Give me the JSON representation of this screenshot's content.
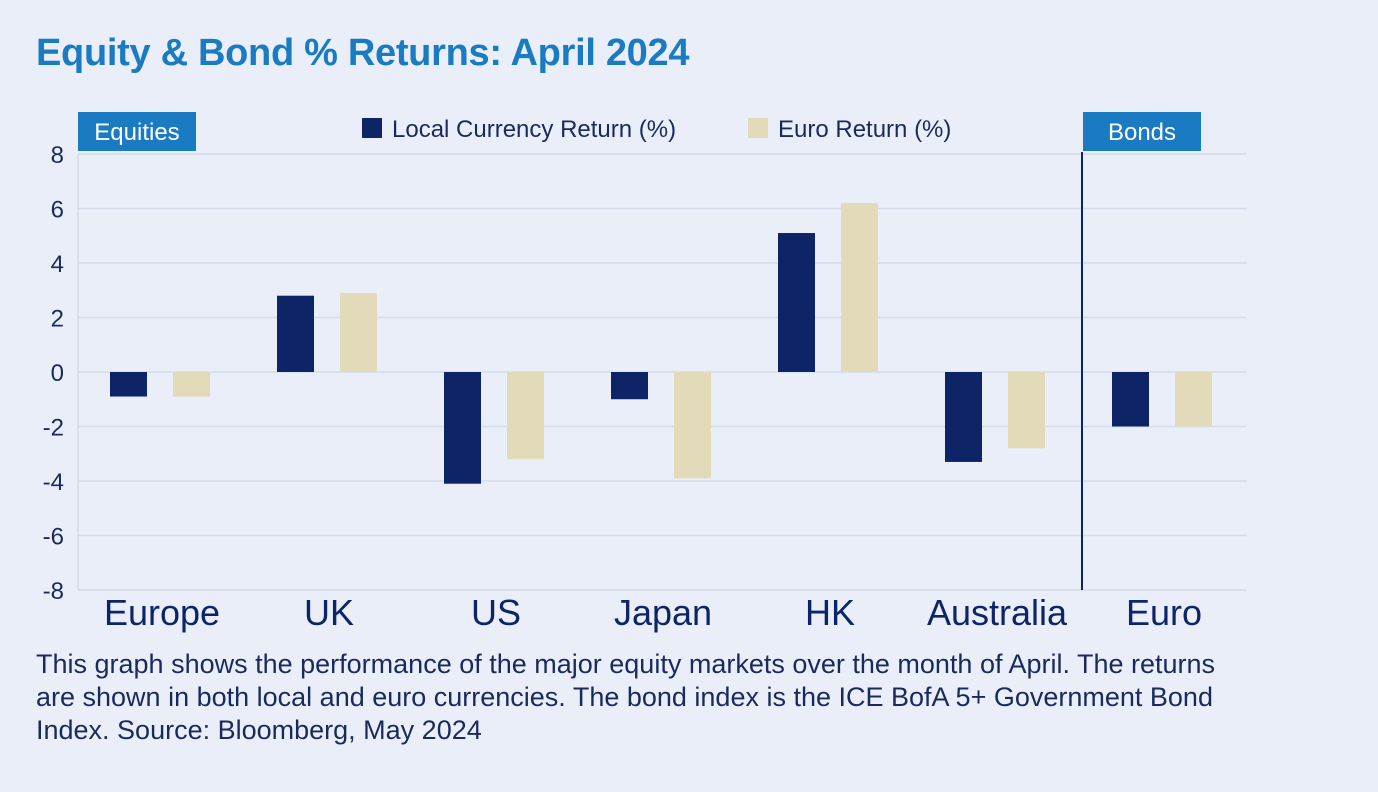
{
  "title": "Equity & Bond % Returns: April 2024",
  "caption": "This graph shows the performance of the major equity markets over the month of April. The returns are shown in both local and euro currencies. The bond index is the ICE BofA 5+ Government Bond Index. Source: Bloomberg, May 2024",
  "colors": {
    "background": "#e9eef8",
    "title": "#1a7ac2",
    "tag": "#1a7ac2",
    "local": "#0d2466",
    "euro": "#e2dab8",
    "grid": "#d4dbea",
    "text": "#1a2a5c"
  },
  "chart_data": {
    "type": "bar",
    "title": "Equity & Bond % Returns: April 2024",
    "xlabel": "",
    "ylabel": "",
    "ylim": [
      -8,
      8
    ],
    "yticks": [
      8,
      6,
      4,
      2,
      0,
      -2,
      -4,
      -6,
      -8
    ],
    "grid": true,
    "legend_position": "top-center",
    "categories": [
      "Europe",
      "UK",
      "US",
      "Japan",
      "HK",
      "Australia",
      "Euro"
    ],
    "series": [
      {
        "name": "Local Currency Return (%)",
        "values": [
          -0.9,
          2.8,
          -4.1,
          -1.0,
          5.1,
          -3.3,
          -2.0
        ]
      },
      {
        "name": "Euro Return (%)",
        "values": [
          -0.9,
          2.9,
          -3.2,
          -3.9,
          6.2,
          -2.8,
          -2.0
        ]
      }
    ],
    "groups": [
      {
        "label": "Equities",
        "categories": [
          "Europe",
          "UK",
          "US",
          "Japan",
          "HK",
          "Australia"
        ]
      },
      {
        "label": "Bonds",
        "categories": [
          "Euro"
        ]
      }
    ]
  }
}
